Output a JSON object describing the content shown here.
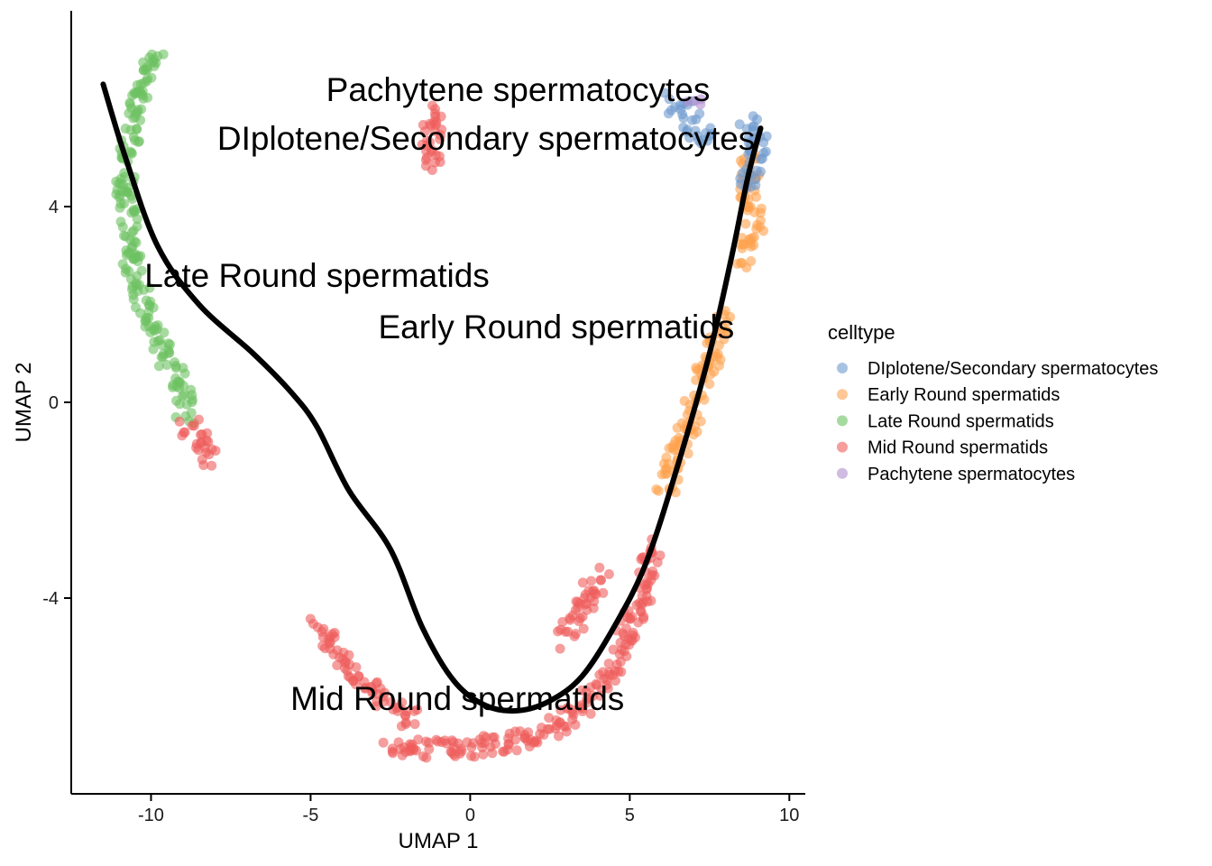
{
  "chart_data": {
    "type": "scatter",
    "xlabel": "UMAP 1",
    "ylabel": "UMAP 2",
    "xlim": [
      -12.5,
      10.5
    ],
    "ylim": [
      -8.0,
      8.0
    ],
    "x_ticks": [
      -10,
      -5,
      0,
      5,
      10
    ],
    "x_tick_labels": [
      "-10",
      "-5",
      "0",
      "5",
      "10"
    ],
    "y_ticks": [
      -4,
      0,
      4
    ],
    "y_tick_labels": [
      "-4",
      "0",
      "4"
    ],
    "grid": false,
    "legend": {
      "title": "celltype",
      "placement": "right",
      "entries": [
        {
          "label": "DIplotene/Secondary spermatocytes",
          "color": "#6E9ACE"
        },
        {
          "label": "Early Round spermatids",
          "color": "#FDA14E"
        },
        {
          "label": "Late Round spermatids",
          "color": "#6CC160"
        },
        {
          "label": "Mid Round spermatids",
          "color": "#EE5E5C"
        },
        {
          "label": "Pachytene spermatocytes",
          "color": "#B08ED0"
        }
      ]
    },
    "cluster_labels": [
      {
        "text": "Pachytene spermatocytes",
        "x": 1.5,
        "y": 6.4
      },
      {
        "text": "DIplotene/Secondary spermatocytes",
        "x": 0.5,
        "y": 5.4
      },
      {
        "text": "Late Round spermatids",
        "x": -4.8,
        "y": 2.6
      },
      {
        "text": "Early Round spermatids",
        "x": 2.7,
        "y": 1.55
      },
      {
        "text": "Mid Round spermatids",
        "x": -0.4,
        "y": -6.05
      }
    ],
    "series": [
      {
        "name": "Late Round spermatids",
        "color": "#6CC160",
        "path": [
          [
            -9.8,
            7.3
          ],
          [
            -10.1,
            6.7
          ],
          [
            -10.5,
            6.1
          ],
          [
            -10.6,
            5.4
          ],
          [
            -10.8,
            4.9
          ],
          [
            -10.8,
            4.2
          ],
          [
            -10.6,
            3.6
          ],
          [
            -10.6,
            3.0
          ],
          [
            -10.4,
            2.4
          ],
          [
            -10.2,
            1.9
          ],
          [
            -9.7,
            1.2
          ],
          [
            -9.4,
            0.7
          ],
          [
            -9.0,
            0.3
          ],
          [
            -8.9,
            -0.3
          ]
        ]
      },
      {
        "name": "Mid Round spermatids",
        "color": "#EE5E5C",
        "path": [
          [
            -1.2,
            6.1
          ],
          [
            -1.2,
            5.4
          ],
          [
            -1.1,
            5.0
          ],
          [
            -1.3,
            4.9
          ]
        ]
      },
      {
        "name": "Mid Round spermatids",
        "color": "#EE5E5C",
        "path": [
          [
            -8.8,
            -0.4
          ],
          [
            -8.5,
            -0.8
          ],
          [
            -8.1,
            -1.3
          ]
        ]
      },
      {
        "name": "Mid Round spermatids",
        "color": "#EE5E5C",
        "path": [
          [
            -4.7,
            -4.6
          ],
          [
            -4.0,
            -5.3
          ],
          [
            -3.2,
            -5.8
          ],
          [
            -2.5,
            -6.2
          ],
          [
            -1.8,
            -6.5
          ]
        ]
      },
      {
        "name": "Mid Round spermatids",
        "color": "#EE5E5C",
        "path": [
          [
            -2.6,
            -7.0
          ],
          [
            -1.4,
            -7.1
          ],
          [
            -0.4,
            -7.1
          ],
          [
            0.6,
            -7.0
          ],
          [
            1.7,
            -6.9
          ],
          [
            2.6,
            -6.7
          ],
          [
            3.4,
            -6.3
          ],
          [
            4.1,
            -5.8
          ],
          [
            4.6,
            -5.3
          ],
          [
            5.0,
            -4.6
          ],
          [
            5.5,
            -3.7
          ],
          [
            5.8,
            -2.8
          ]
        ]
      },
      {
        "name": "Mid Round spermatids",
        "color": "#EE5E5C",
        "path": [
          [
            2.9,
            -4.9
          ],
          [
            3.3,
            -4.5
          ],
          [
            3.7,
            -4.0
          ],
          [
            4.1,
            -3.5
          ]
        ]
      },
      {
        "name": "Early Round spermatids",
        "color": "#FDA14E",
        "path": [
          [
            6.0,
            -2.0
          ],
          [
            6.5,
            -1.0
          ],
          [
            7.1,
            0.0
          ],
          [
            7.6,
            1.0
          ],
          [
            7.9,
            1.8
          ]
        ]
      },
      {
        "name": "Early Round spermatids",
        "color": "#FDA14E",
        "path": [
          [
            8.6,
            2.8
          ],
          [
            8.9,
            3.6
          ],
          [
            8.7,
            4.2
          ],
          [
            8.8,
            4.8
          ],
          [
            8.6,
            5.2
          ]
        ]
      },
      {
        "name": "DIplotene/Secondary spermatocytes",
        "color": "#6E9ACE",
        "path": [
          [
            6.3,
            6.2
          ],
          [
            6.8,
            5.9
          ],
          [
            7.2,
            5.5
          ],
          [
            7.4,
            5.3
          ]
        ]
      },
      {
        "name": "DIplotene/Secondary spermatocytes",
        "color": "#6E9ACE",
        "path": [
          [
            8.6,
            5.7
          ],
          [
            9.0,
            5.5
          ],
          [
            9.0,
            5.0
          ],
          [
            8.6,
            4.4
          ]
        ]
      },
      {
        "name": "Pachytene spermatocytes",
        "color": "#B08ED0",
        "path": [
          [
            6.9,
            6.3
          ],
          [
            7.1,
            6.2
          ]
        ]
      }
    ],
    "trajectory": {
      "color": "#000000",
      "points": [
        [
          -11.5,
          6.5
        ],
        [
          -10.8,
          5.0
        ],
        [
          -9.8,
          3.2
        ],
        [
          -8.5,
          2.0
        ],
        [
          -6.8,
          1.0
        ],
        [
          -5.6,
          0.2
        ],
        [
          -4.8,
          -0.5
        ],
        [
          -3.8,
          -1.8
        ],
        [
          -2.5,
          -3.0
        ],
        [
          -1.5,
          -4.6
        ],
        [
          -0.5,
          -5.7
        ],
        [
          0.5,
          -6.2
        ],
        [
          1.5,
          -6.3
        ],
        [
          2.5,
          -6.1
        ],
        [
          3.5,
          -5.6
        ],
        [
          4.5,
          -4.6
        ],
        [
          5.5,
          -3.3
        ],
        [
          6.5,
          -1.3
        ],
        [
          7.5,
          1.0
        ],
        [
          8.2,
          3.0
        ],
        [
          8.7,
          4.6
        ],
        [
          9.1,
          5.6
        ]
      ]
    }
  }
}
